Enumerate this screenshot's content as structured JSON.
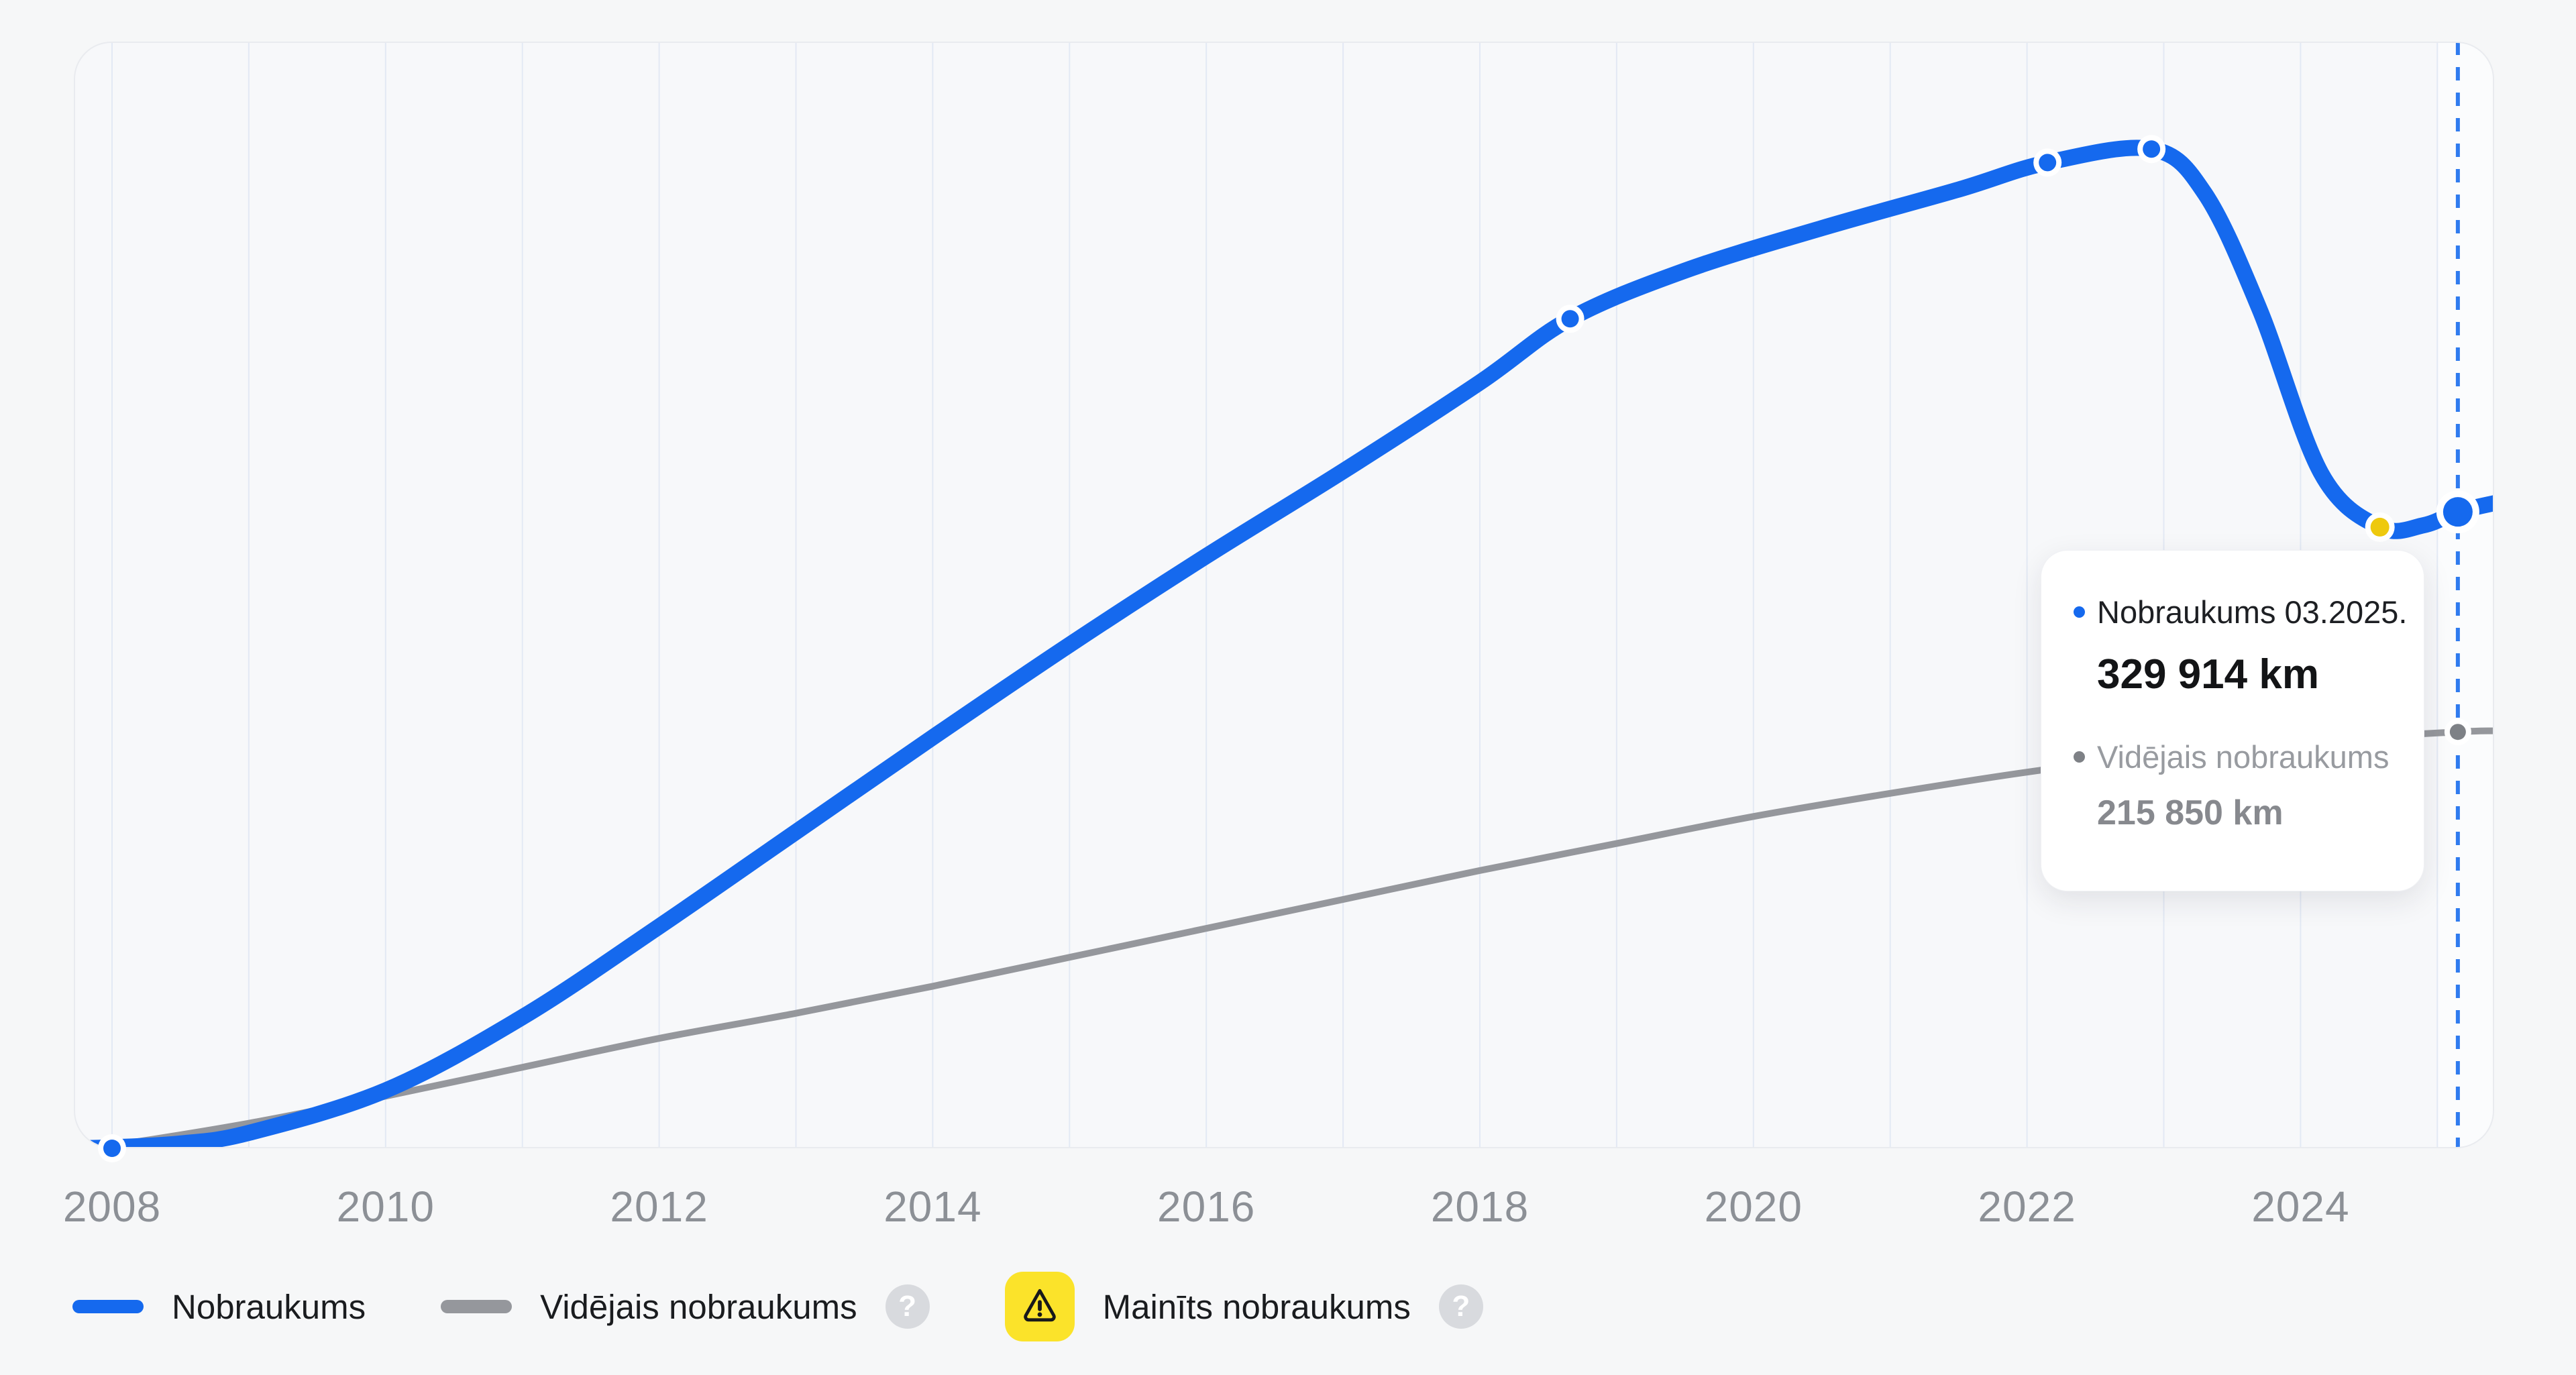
{
  "colors": {
    "primary_blue": "#1569ee",
    "dashed_blue": "#2f7bef",
    "gray_line": "#95979c",
    "gray_marker": "#7e8186",
    "yellow_marker": "#eec90d",
    "yellow_badge": "#fbe32a",
    "warning_glyph": "#17181a",
    "grid": "#e3e9f4",
    "band_highlight": "rgba(255,255,255,0.55)",
    "axis_label": "#8c9096",
    "marker_ring": "#ffffff",
    "help_circle": "#d8dade"
  },
  "x_axis": {
    "ticks": [
      {
        "label": "2008",
        "year": 2008
      },
      {
        "label": "2010",
        "year": 2010
      },
      {
        "label": "2012",
        "year": 2012
      },
      {
        "label": "2014",
        "year": 2014
      },
      {
        "label": "2016",
        "year": 2016
      },
      {
        "label": "2018",
        "year": 2018
      },
      {
        "label": "2020",
        "year": 2020
      },
      {
        "label": "2022",
        "year": 2022
      },
      {
        "label": "2024",
        "year": 2024
      }
    ]
  },
  "chart_data": {
    "type": "line",
    "x_unit": "year",
    "y_unit": "km",
    "x_range": [
      2007.72,
      2025.42
    ],
    "y_range": [
      0,
      573000
    ],
    "grid_on": true,
    "grid_years": [
      2008,
      2009,
      2010,
      2011,
      2012,
      2013,
      2014,
      2015,
      2016,
      2017,
      2018,
      2019,
      2020,
      2021,
      2022,
      2023,
      2024,
      2025
    ],
    "current_year": 2025.15,
    "current_period_band_start_year": 2025,
    "series": [
      {
        "name": "Nobraukums",
        "color_key": "primary_blue",
        "stroke_width": 24,
        "points": [
          [
            2007.72,
            0
          ],
          [
            2008,
            500
          ],
          [
            2008.5,
            2500
          ],
          [
            2009,
            8000
          ],
          [
            2010,
            30000
          ],
          [
            2011,
            68000
          ],
          [
            2012,
            115000
          ],
          [
            2013,
            164000
          ],
          [
            2014,
            213000
          ],
          [
            2015,
            261000
          ],
          [
            2016,
            307000
          ],
          [
            2017,
            351000
          ],
          [
            2018,
            397000
          ],
          [
            2018.66,
            430000
          ],
          [
            2019.5,
            455000
          ],
          [
            2020.5,
            477000
          ],
          [
            2021.5,
            497000
          ],
          [
            2022.15,
            511000
          ],
          [
            2022.91,
            518000
          ],
          [
            2023.3,
            495000
          ],
          [
            2023.7,
            435000
          ],
          [
            2024.15,
            350000
          ],
          [
            2024.58,
            322000
          ],
          [
            2024.9,
            323000
          ],
          [
            2025.15,
            329914
          ],
          [
            2025.42,
            334500
          ]
        ]
      },
      {
        "name": "Vidējais nobraukums",
        "color_key": "gray_line",
        "stroke_width": 10,
        "points": [
          [
            2007.72,
            0
          ],
          [
            2008,
            1500
          ],
          [
            2009,
            13000
          ],
          [
            2010,
            27000
          ],
          [
            2011,
            42000
          ],
          [
            2012,
            57000
          ],
          [
            2013,
            70000
          ],
          [
            2014,
            84000
          ],
          [
            2015,
            99000
          ],
          [
            2016,
            114000
          ],
          [
            2017,
            129000
          ],
          [
            2018,
            144000
          ],
          [
            2019,
            158000
          ],
          [
            2020,
            172000
          ],
          [
            2021,
            184000
          ],
          [
            2022,
            195000
          ],
          [
            2023,
            204000
          ],
          [
            2024,
            211000
          ],
          [
            2025.15,
            215850
          ],
          [
            2025.42,
            216400
          ]
        ]
      }
    ],
    "markers": [
      {
        "series": "Nobraukums",
        "year": 2008,
        "km": 0,
        "kind": "small"
      },
      {
        "series": "Nobraukums",
        "year": 2018.66,
        "km": 430000,
        "kind": "small"
      },
      {
        "series": "Nobraukums",
        "year": 2022.15,
        "km": 511000,
        "kind": "small"
      },
      {
        "series": "Nobraukums",
        "year": 2022.91,
        "km": 518000,
        "kind": "small"
      },
      {
        "series": "Nobraukums",
        "year": 2024.58,
        "km": 322000,
        "kind": "yellow"
      },
      {
        "series": "Nobraukums",
        "year": 2025.15,
        "km": 329914,
        "kind": "big"
      },
      {
        "series": "Vidējais nobraukums",
        "year": 2025.15,
        "km": 215850,
        "kind": "gray"
      }
    ]
  },
  "tooltip": {
    "title": "Nobraukums 03.2025.",
    "value": "329 914 km",
    "sub_label": "Vidējais nobraukums",
    "sub_value": "215 850 km"
  },
  "legend": {
    "help_glyph": "?",
    "items": [
      {
        "label": "Nobraukums",
        "swatch": "blue-line"
      },
      {
        "label": "Vidējais nobraukums",
        "swatch": "gray-line",
        "has_help": true
      },
      {
        "label": "Mainīts nobraukums",
        "swatch": "warning-badge",
        "has_help": true
      }
    ]
  }
}
